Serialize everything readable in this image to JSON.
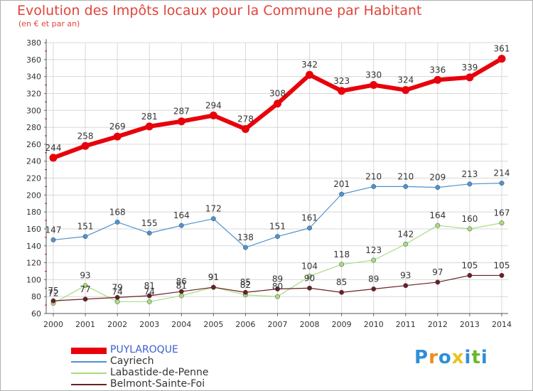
{
  "title": "Evolution des Impôts locaux pour la Commune par Habitant",
  "subtitle": "(en € et par an)",
  "logo": {
    "letters": [
      "P",
      "r",
      "o",
      "x",
      "i",
      "t",
      "i"
    ],
    "colors": [
      "#2f8fd8",
      "#f08a1d",
      "#2f8fd8",
      "#e8c41a",
      "#2f8fd8",
      "#6ab82e",
      "#2f8fd8"
    ]
  },
  "chart_data": {
    "type": "line",
    "title": "Evolution des Impôts locaux pour la Commune par Habitant",
    "xlabel": "",
    "ylabel": "",
    "x": [
      "2000",
      "2001",
      "2002",
      "2003",
      "2004",
      "2005",
      "2006",
      "2007",
      "2008",
      "2009",
      "2010",
      "2011",
      "2012",
      "2013",
      "2014"
    ],
    "ylim": [
      60,
      380
    ],
    "yticks": [
      60,
      80,
      100,
      120,
      140,
      160,
      180,
      200,
      220,
      240,
      260,
      280,
      300,
      320,
      340,
      360,
      380
    ],
    "grid": true,
    "legend": "bottom-left",
    "series": [
      {
        "name": "PUYLAROQUE",
        "color": "#e8000b",
        "values": [
          244,
          258,
          269,
          281,
          287,
          294,
          278,
          308,
          342,
          323,
          330,
          324,
          336,
          339,
          361
        ]
      },
      {
        "name": "Cayriech",
        "color": "#4f93cf",
        "values": [
          147,
          151,
          168,
          155,
          164,
          172,
          138,
          151,
          161,
          201,
          210,
          210,
          209,
          213,
          214
        ]
      },
      {
        "name": "Labastide-de-Penne",
        "color": "#a8dc80",
        "values": [
          72,
          93,
          74,
          74,
          81,
          91,
          82,
          80,
          104,
          118,
          123,
          142,
          164,
          160,
          167
        ]
      },
      {
        "name": "Belmont-Sainte-Foi",
        "color": "#6a1f25",
        "values": [
          75,
          77,
          79,
          81,
          86,
          91,
          85,
          89,
          90,
          85,
          89,
          93,
          97,
          105,
          105
        ]
      }
    ]
  }
}
